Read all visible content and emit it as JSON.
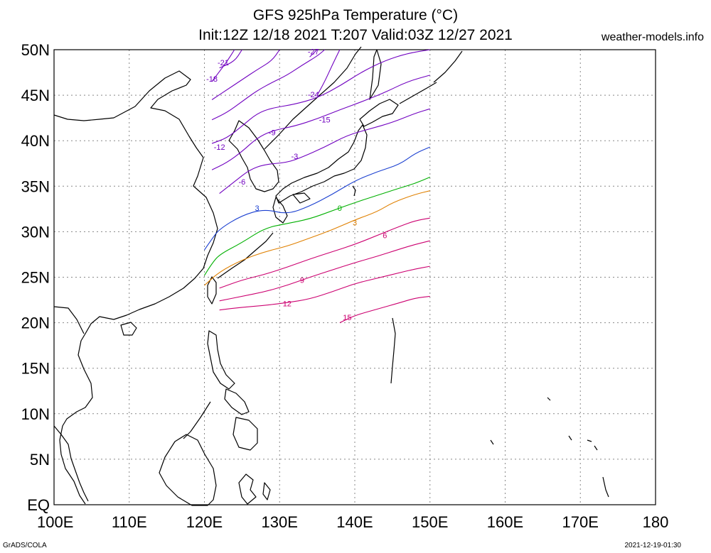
{
  "header": {
    "title_line1": "GFS 925hPa Temperature (°C)",
    "title_line2": "Init:12Z 12/18 2021 T:207 Valid:03Z 12/27 2021",
    "site": "weather-models.info"
  },
  "footer": {
    "left": "GrADS/COLA",
    "right": "2021-12-19-01:30"
  },
  "map": {
    "lon_range": [
      100,
      180
    ],
    "lat_range": [
      0,
      50
    ],
    "grid": true,
    "lon_ticks": [
      {
        "value": 100,
        "label": "100E"
      },
      {
        "value": 110,
        "label": "110E"
      },
      {
        "value": 120,
        "label": "120E"
      },
      {
        "value": 130,
        "label": "130E"
      },
      {
        "value": 140,
        "label": "140E"
      },
      {
        "value": 150,
        "label": "150E"
      },
      {
        "value": 160,
        "label": "160E"
      },
      {
        "value": 170,
        "label": "170E"
      },
      {
        "value": 180,
        "label": "180"
      }
    ],
    "lat_ticks": [
      {
        "value": 0,
        "label": "EQ"
      },
      {
        "value": 5,
        "label": "5N"
      },
      {
        "value": 10,
        "label": "10N"
      },
      {
        "value": 15,
        "label": "15N"
      },
      {
        "value": 20,
        "label": "20N"
      },
      {
        "value": 25,
        "label": "25N"
      },
      {
        "value": 30,
        "label": "30N"
      },
      {
        "value": 35,
        "label": "35N"
      },
      {
        "value": 40,
        "label": "40N"
      },
      {
        "value": 45,
        "label": "45N"
      },
      {
        "value": 50,
        "label": "50N"
      }
    ],
    "data_domain": {
      "lon": [
        120,
        150
      ],
      "lat": [
        20,
        50
      ]
    },
    "contours": [
      {
        "value": 3,
        "label": "3",
        "color": "#1a3fd0",
        "points": [
          [
            120,
            28
          ],
          [
            121,
            29.2
          ],
          [
            122,
            30.3
          ],
          [
            125,
            31.8
          ],
          [
            128,
            32.5
          ],
          [
            131,
            31.9
          ],
          [
            134,
            32.8
          ],
          [
            137,
            34.1
          ],
          [
            140,
            35.6
          ],
          [
            143,
            36.6
          ],
          [
            146,
            37.4
          ],
          [
            148,
            38.6
          ],
          [
            150,
            39.3
          ]
        ],
        "label_at": [
          127,
          32.6
        ]
      },
      {
        "value": 0,
        "label": "0",
        "color": "#00b000",
        "points": [
          [
            120,
            25.2
          ],
          [
            121,
            26.5
          ],
          [
            122,
            27.5
          ],
          [
            125,
            28.8
          ],
          [
            128,
            30.4
          ],
          [
            131,
            30.9
          ],
          [
            134,
            31.4
          ],
          [
            137,
            32.3
          ],
          [
            140,
            33.2
          ],
          [
            143,
            34
          ],
          [
            146,
            34.8
          ],
          [
            148,
            35.3
          ],
          [
            150,
            36
          ]
        ],
        "label_at": [
          138,
          32.6
        ]
      },
      {
        "value": 3,
        "label": "3",
        "color": "#e08000",
        "points": [
          [
            120,
            24.1
          ],
          [
            122,
            25.6
          ],
          [
            125,
            26.9
          ],
          [
            128,
            27.8
          ],
          [
            131,
            28.4
          ],
          [
            134,
            29.3
          ],
          [
            137,
            30.2
          ],
          [
            140,
            31.3
          ],
          [
            143,
            32.2
          ],
          [
            145,
            33.2
          ],
          [
            148,
            34.1
          ],
          [
            150,
            34.5
          ]
        ],
        "label_at": [
          140,
          31
        ]
      },
      {
        "value": 6,
        "label": "6",
        "color": "#cc0070",
        "points": [
          [
            122,
            23.8
          ],
          [
            125,
            24.7
          ],
          [
            128,
            25.3
          ],
          [
            131,
            26.1
          ],
          [
            134,
            27
          ],
          [
            137,
            27.8
          ],
          [
            140,
            28.6
          ],
          [
            143,
            29.6
          ],
          [
            146,
            30.6
          ],
          [
            148,
            31.2
          ],
          [
            150,
            31.5
          ]
        ],
        "label_at": [
          144,
          29.6
        ]
      },
      {
        "value": 9,
        "label": "9",
        "color": "#cc0070",
        "points": [
          [
            122,
            22.4
          ],
          [
            125,
            22.9
          ],
          [
            128,
            23.4
          ],
          [
            131,
            24.1
          ],
          [
            134,
            25
          ],
          [
            137,
            25.8
          ],
          [
            140,
            26.6
          ],
          [
            143,
            27.3
          ],
          [
            146,
            28.1
          ],
          [
            148,
            28.6
          ],
          [
            150,
            29
          ]
        ],
        "label_at": [
          133,
          24.7
        ]
      },
      {
        "value": 12,
        "label": "12",
        "color": "#cc0070",
        "points": [
          [
            122,
            21.4
          ],
          [
            125,
            21.7
          ],
          [
            128,
            21.9
          ],
          [
            131,
            22.2
          ],
          [
            134,
            22.6
          ],
          [
            137,
            23.4
          ],
          [
            140,
            24.3
          ],
          [
            143,
            24.9
          ],
          [
            146,
            25.5
          ],
          [
            148,
            25.9
          ],
          [
            150,
            26.2
          ]
        ],
        "label_at": [
          131,
          22.1
        ]
      },
      {
        "value": 15,
        "label": "15",
        "color": "#cc0070",
        "points": [
          [
            138,
            20
          ],
          [
            140,
            20.8
          ],
          [
            143,
            21.5
          ],
          [
            146,
            22.2
          ],
          [
            148,
            22.7
          ],
          [
            150,
            22.9
          ]
        ],
        "label_at": [
          139,
          20.6
        ]
      },
      {
        "value": -3,
        "label": "-3",
        "color": "#7000c0",
        "points": [
          [
            122,
            34.2
          ],
          [
            124,
            35.5
          ],
          [
            126,
            36.8
          ],
          [
            128,
            37.4
          ],
          [
            131,
            37.6
          ],
          [
            133,
            38.2
          ],
          [
            136,
            39.3
          ],
          [
            139,
            40.6
          ],
          [
            142,
            41.3
          ],
          [
            145,
            42
          ],
          [
            148,
            43
          ],
          [
            150,
            43.5
          ]
        ],
        "label_at": [
          132,
          38.3
        ]
      },
      {
        "value": -6,
        "label": "-6",
        "color": "#7000c0",
        "points": [
          [
            121,
            36.8
          ],
          [
            123,
            37.6
          ],
          [
            125,
            38.8
          ],
          [
            127,
            40.3
          ],
          [
            129,
            41.1
          ],
          [
            132,
            41.6
          ],
          [
            135,
            42.4
          ],
          [
            138,
            43.4
          ],
          [
            141,
            44.3
          ],
          [
            144,
            45.3
          ],
          [
            147,
            46.5
          ],
          [
            150,
            47.2
          ]
        ],
        "label_at": [
          125,
          35.5
        ]
      },
      {
        "value": -9,
        "label": "-9",
        "color": "#7000c0",
        "points": [
          [
            121,
            39.7
          ],
          [
            123,
            40.3
          ],
          [
            125,
            41.6
          ],
          [
            127,
            43
          ],
          [
            129,
            43.6
          ],
          [
            132,
            44
          ],
          [
            135,
            44.7
          ],
          [
            138,
            46
          ],
          [
            141,
            47.6
          ],
          [
            144,
            48.8
          ],
          [
            147,
            49.6
          ],
          [
            150,
            50
          ]
        ],
        "label_at": [
          129,
          40.9
        ]
      },
      {
        "value": -12,
        "label": "-12",
        "color": "#7000c0",
        "points": [
          [
            121,
            42.3
          ],
          [
            123,
            43.1
          ],
          [
            125,
            44.3
          ],
          [
            127,
            45.5
          ],
          [
            129,
            46.4
          ],
          [
            131,
            47.2
          ],
          [
            133,
            48.3
          ],
          [
            135,
            49.3
          ],
          [
            136,
            50
          ]
        ],
        "label_at": [
          122,
          39.3
        ]
      },
      {
        "value": -15,
        "label": "-15",
        "color": "#7000c0",
        "points": [
          [
            121,
            44.5
          ],
          [
            123,
            45.6
          ],
          [
            125,
            46.7
          ],
          [
            127,
            47.8
          ],
          [
            129,
            48.8
          ],
          [
            130,
            50
          ]
        ],
        "label_at": [
          136,
          42.3
        ]
      },
      {
        "value": -18,
        "label": "-18",
        "color": "#7000c0",
        "points": [
          [
            121,
            46.5
          ],
          [
            122,
            47.6
          ],
          [
            123,
            48.7
          ],
          [
            124,
            50
          ]
        ],
        "label_at": [
          121,
          46.8
        ]
      },
      {
        "value": -21,
        "label": "-21",
        "color": "#7000c0",
        "points": [
          [
            122,
            48
          ],
          [
            124,
            48.7
          ],
          [
            125,
            50
          ]
        ],
        "label_at": [
          122.5,
          48.6
        ]
      },
      {
        "value": -24,
        "label": "-24",
        "color": "#7000c0",
        "points": [
          [
            135,
            45
          ],
          [
            136,
            46.5
          ],
          [
            137,
            48.3
          ],
          [
            138,
            50
          ]
        ],
        "label_at": [
          134.5,
          45.1
        ]
      },
      {
        "value": -27,
        "label": "-27",
        "color": "#7000c0",
        "points": [
          [
            134,
            49.2
          ],
          [
            135,
            50
          ]
        ],
        "label_at": [
          134.5,
          49.8
        ]
      }
    ]
  }
}
